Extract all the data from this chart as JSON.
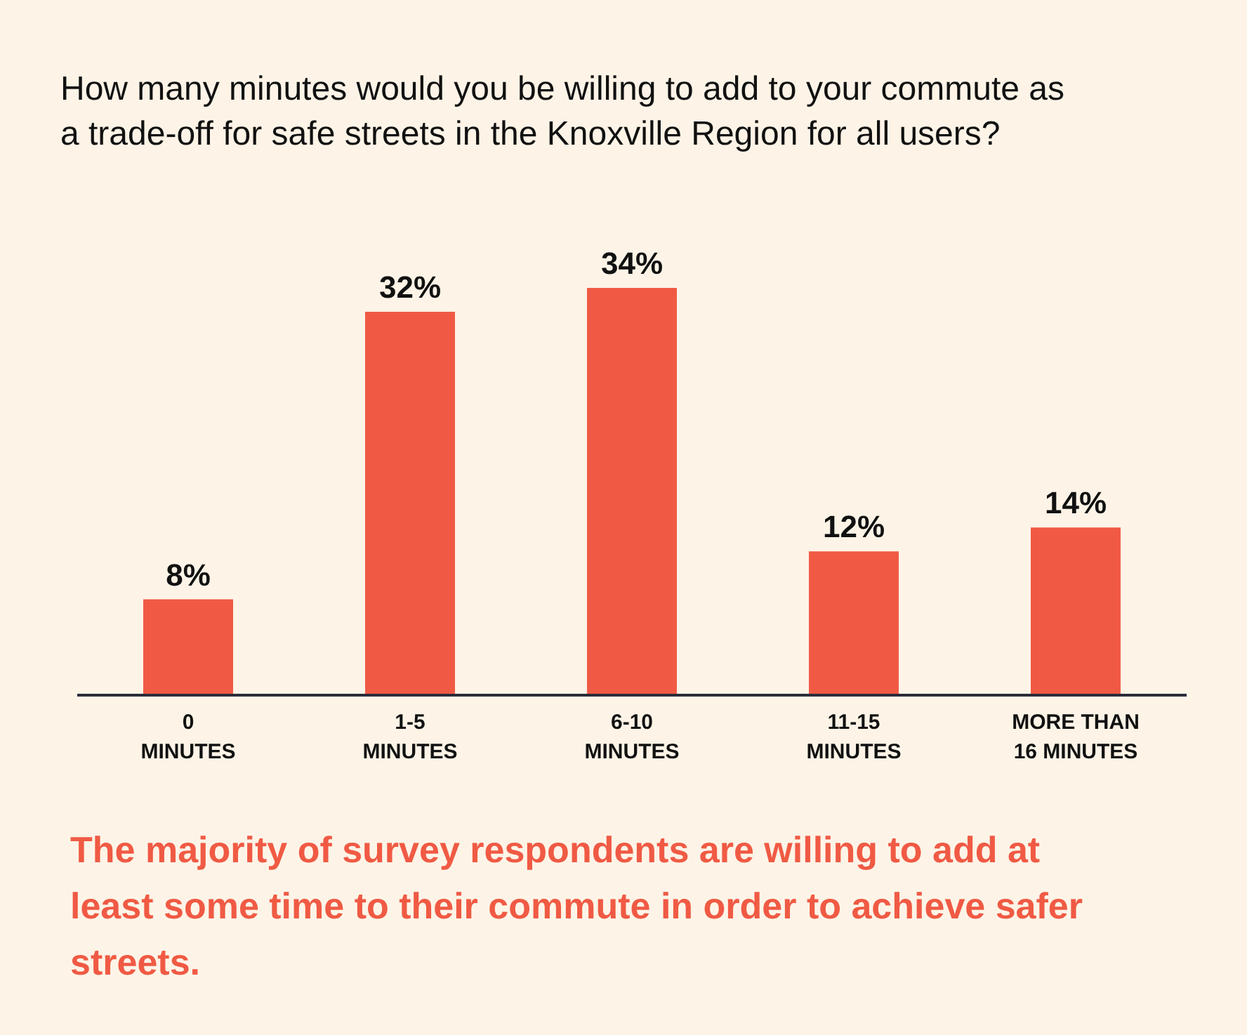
{
  "chart_data": {
    "type": "bar",
    "title": "How many minutes would you be willing to add to your commute as a trade-off for safe streets in the Knoxville Region for all users?",
    "categories": [
      "0\nMINUTES",
      "1-5\nMINUTES",
      "6-10\nMINUTES",
      "11-15\nMINUTES",
      "MORE THAN\n16 MINUTES"
    ],
    "values": [
      8,
      32,
      34,
      12,
      14
    ],
    "value_labels": [
      "8%",
      "32%",
      "34%",
      "12%",
      "14%"
    ],
    "color": "#f05a44",
    "grid": false,
    "annotations": [
      "The majority of survey respondents are willing to add at least some time to their commute in order to achieve safer streets."
    ]
  }
}
